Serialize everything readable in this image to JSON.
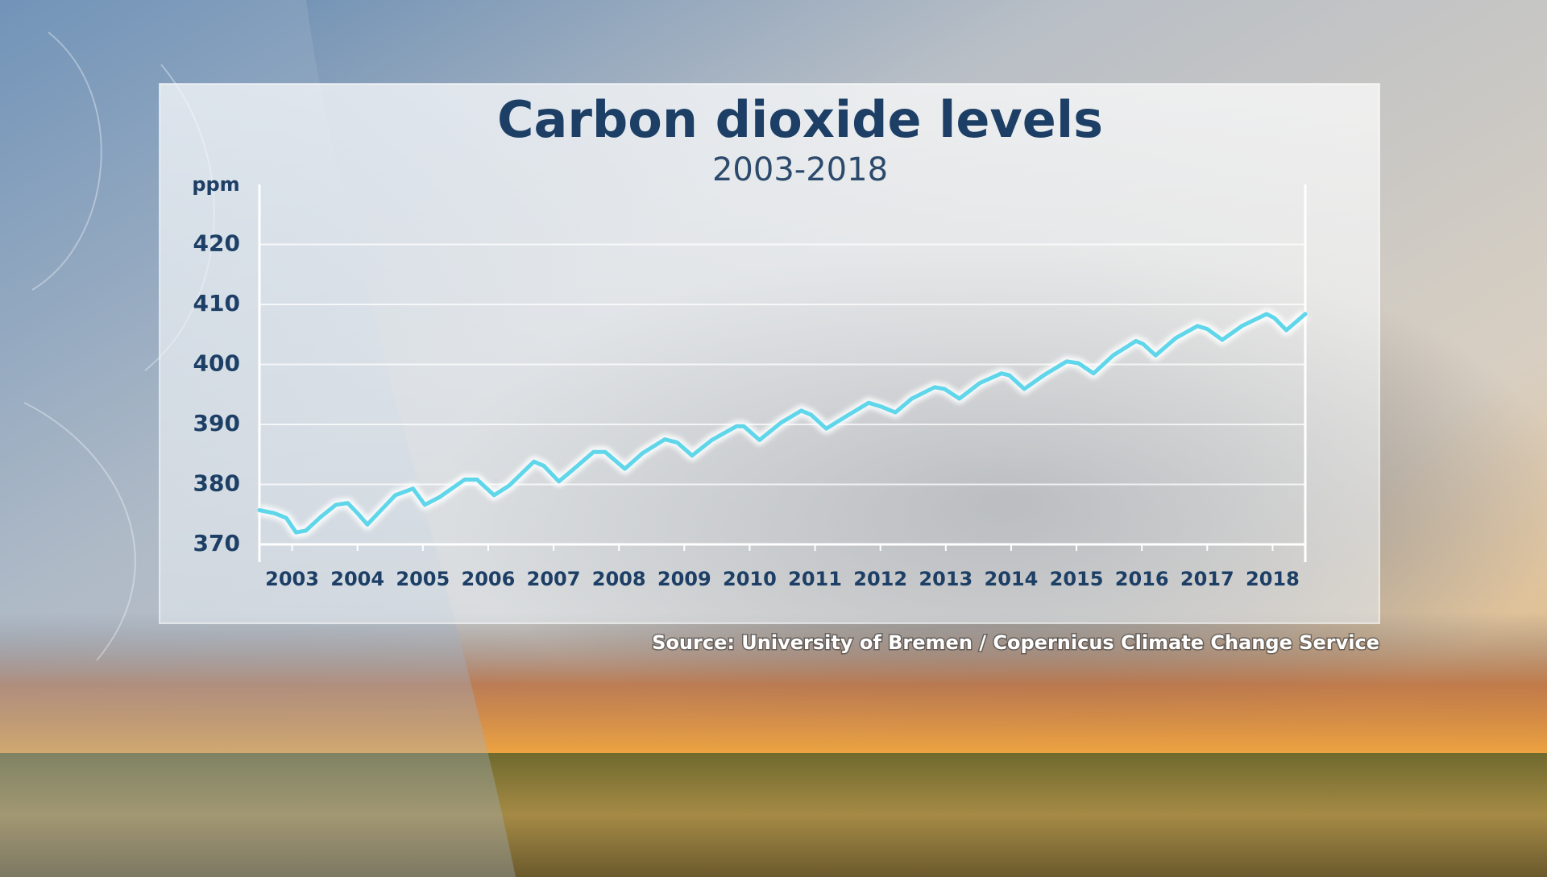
{
  "chart_data": {
    "type": "line",
    "title": "Carbon dioxide levels",
    "subtitle": "2003-2018",
    "y_label": "ppm",
    "source": "Source: University of Bremen / Copernicus Climate Change Service",
    "color": "#5fd6ea",
    "grid": true,
    "xlim": [
      2003,
      2019
    ],
    "ylim": [
      370,
      430
    ],
    "yticks": [
      370,
      380,
      390,
      400,
      410,
      420
    ],
    "xticks": [
      {
        "value": 2003.5,
        "label": "2003"
      },
      {
        "value": 2004.5,
        "label": "2004"
      },
      {
        "value": 2005.5,
        "label": "2005"
      },
      {
        "value": 2006.5,
        "label": "2006"
      },
      {
        "value": 2007.5,
        "label": "2007"
      },
      {
        "value": 2008.5,
        "label": "2008"
      },
      {
        "value": 2009.5,
        "label": "2009"
      },
      {
        "value": 2010.5,
        "label": "2010"
      },
      {
        "value": 2011.5,
        "label": "2011"
      },
      {
        "value": 2012.5,
        "label": "2012"
      },
      {
        "value": 2013.5,
        "label": "2013"
      },
      {
        "value": 2014.5,
        "label": "2014"
      },
      {
        "value": 2015.5,
        "label": "2015"
      },
      {
        "value": 2016.5,
        "label": "2016"
      },
      {
        "value": 2017.5,
        "label": "2017"
      },
      {
        "value": 2018.5,
        "label": "2018"
      }
    ],
    "x": [
      2003.0,
      2003.23,
      2003.41,
      2003.56,
      2003.71,
      2003.94,
      2004.17,
      2004.35,
      2004.5,
      2004.65,
      2004.85,
      2005.08,
      2005.35,
      2005.53,
      2005.76,
      2006.14,
      2006.33,
      2006.59,
      2006.82,
      2007.2,
      2007.35,
      2007.58,
      2007.8,
      2008.11,
      2008.29,
      2008.59,
      2008.86,
      2009.2,
      2009.39,
      2009.62,
      2009.92,
      2010.3,
      2010.41,
      2010.65,
      2010.98,
      2011.29,
      2011.44,
      2011.67,
      2011.97,
      2012.32,
      2012.5,
      2012.73,
      2012.98,
      2013.33,
      2013.48,
      2013.71,
      2014.02,
      2014.35,
      2014.47,
      2014.7,
      2015.0,
      2015.35,
      2015.53,
      2015.76,
      2016.06,
      2016.41,
      2016.52,
      2016.71,
      2017.02,
      2017.35,
      2017.5,
      2017.73,
      2018.03,
      2018.41,
      2018.53,
      2018.71,
      2019.0
    ],
    "values": [
      375.7,
      375.2,
      374.4,
      372.0,
      372.3,
      374.6,
      376.6,
      376.9,
      375.2,
      373.3,
      375.6,
      378.2,
      379.3,
      376.6,
      377.9,
      380.8,
      380.8,
      378.2,
      379.8,
      383.8,
      383.1,
      380.5,
      382.5,
      385.4,
      385.4,
      382.6,
      385.2,
      387.5,
      387.0,
      384.8,
      387.4,
      389.7,
      389.7,
      387.4,
      390.3,
      392.3,
      391.6,
      389.3,
      391.3,
      393.6,
      393.0,
      392.0,
      394.3,
      396.2,
      395.9,
      394.3,
      396.9,
      398.5,
      398.2,
      395.9,
      398.2,
      400.5,
      400.2,
      398.5,
      401.5,
      403.9,
      403.4,
      401.5,
      404.4,
      406.4,
      405.9,
      404.1,
      406.4,
      408.4,
      407.7,
      405.7,
      408.4
    ]
  }
}
